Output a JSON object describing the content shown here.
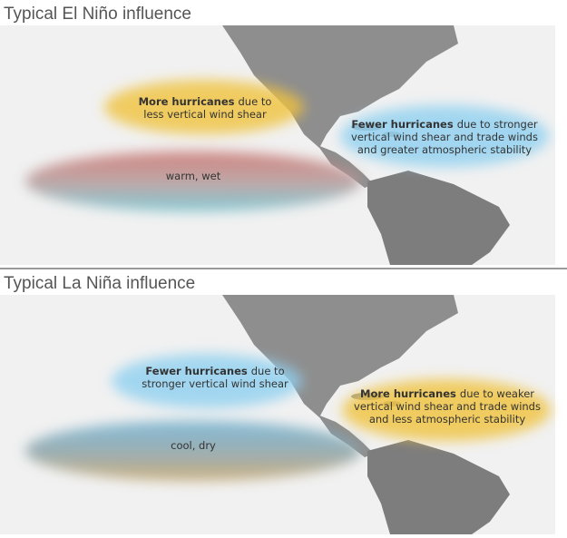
{
  "panels": [
    {
      "title": "Typical El Niño influence",
      "annotations": [
        {
          "bold": "More hurricanes",
          "lines": [
            "due to",
            "less vertical wind shear"
          ]
        },
        {
          "bold": "Fewer hurricanes",
          "lines": [
            "due to stronger",
            "vertical wind shear and trade winds",
            "and greater atmospheric stability"
          ]
        }
      ],
      "band_label": "warm, wet"
    },
    {
      "title": "Typical La Niña influence",
      "annotations": [
        {
          "bold": "Fewer hurricanes",
          "lines": [
            "due to",
            "stronger vertical wind shear"
          ]
        },
        {
          "bold": "More hurricanes",
          "lines": [
            "due to weaker",
            "vertical wind shear and trade winds",
            "and less atmospheric stability"
          ]
        }
      ],
      "band_label": "cool, dry"
    }
  ]
}
